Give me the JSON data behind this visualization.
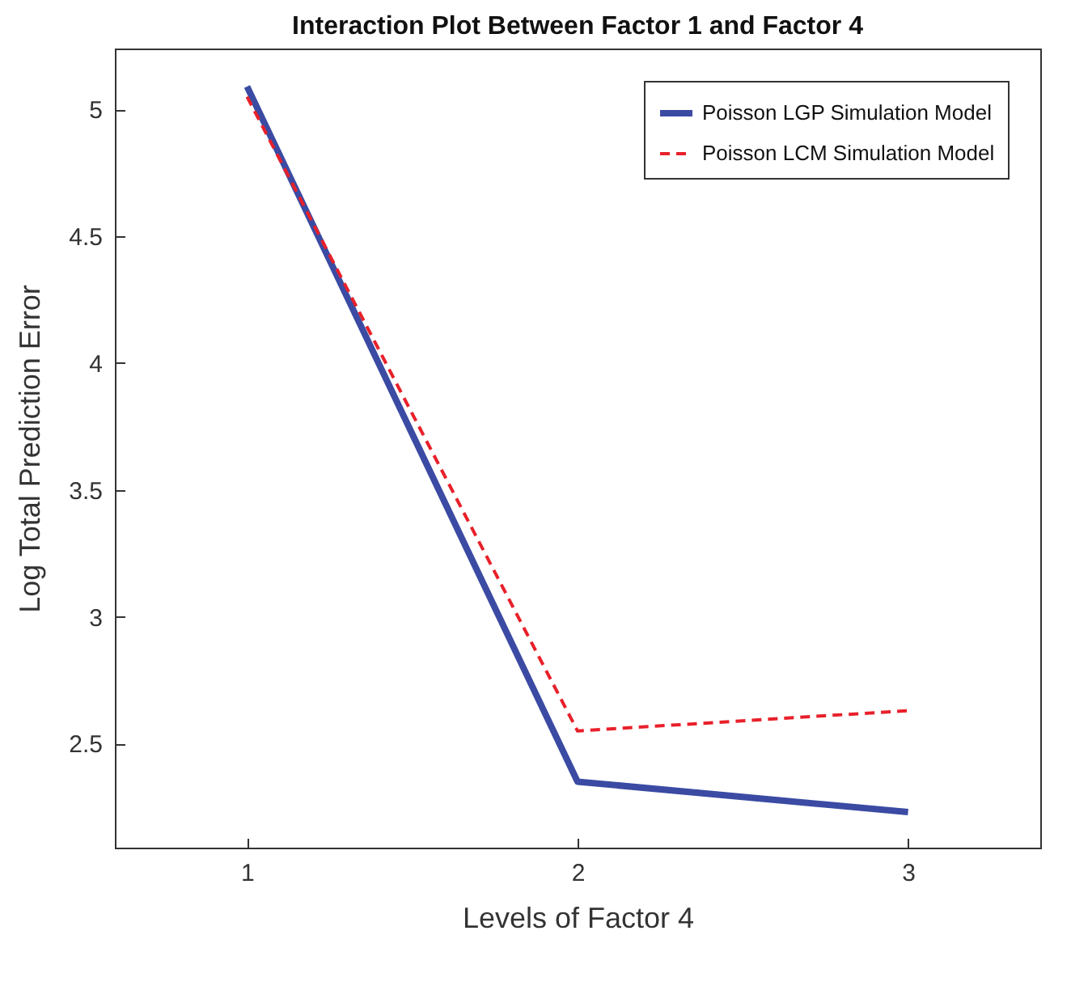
{
  "chart_data": {
    "type": "line",
    "title": "Interaction Plot Between Factor 1 and Factor 4",
    "xlabel": "Levels of Factor 4",
    "ylabel": "Log Total Prediction Error",
    "x": [
      1,
      2,
      3
    ],
    "series": [
      {
        "name": "Poisson LGP Simulation Model",
        "color": "#3b4ba3",
        "line_style": "solid",
        "values": [
          5.09,
          2.35,
          2.23
        ]
      },
      {
        "name": "Poisson LCM Simulation Model",
        "color": "#e8202a",
        "line_style": "dashed",
        "values": [
          5.05,
          2.55,
          2.63
        ]
      }
    ],
    "xlim": [
      0.6,
      3.4
    ],
    "xticks": [
      1,
      2,
      3
    ],
    "ylim": [
      2.09,
      5.24
    ],
    "yticks": [
      2.5,
      3,
      3.5,
      4,
      4.5,
      5
    ],
    "grid": false,
    "legend": "top right",
    "marker": "none"
  }
}
